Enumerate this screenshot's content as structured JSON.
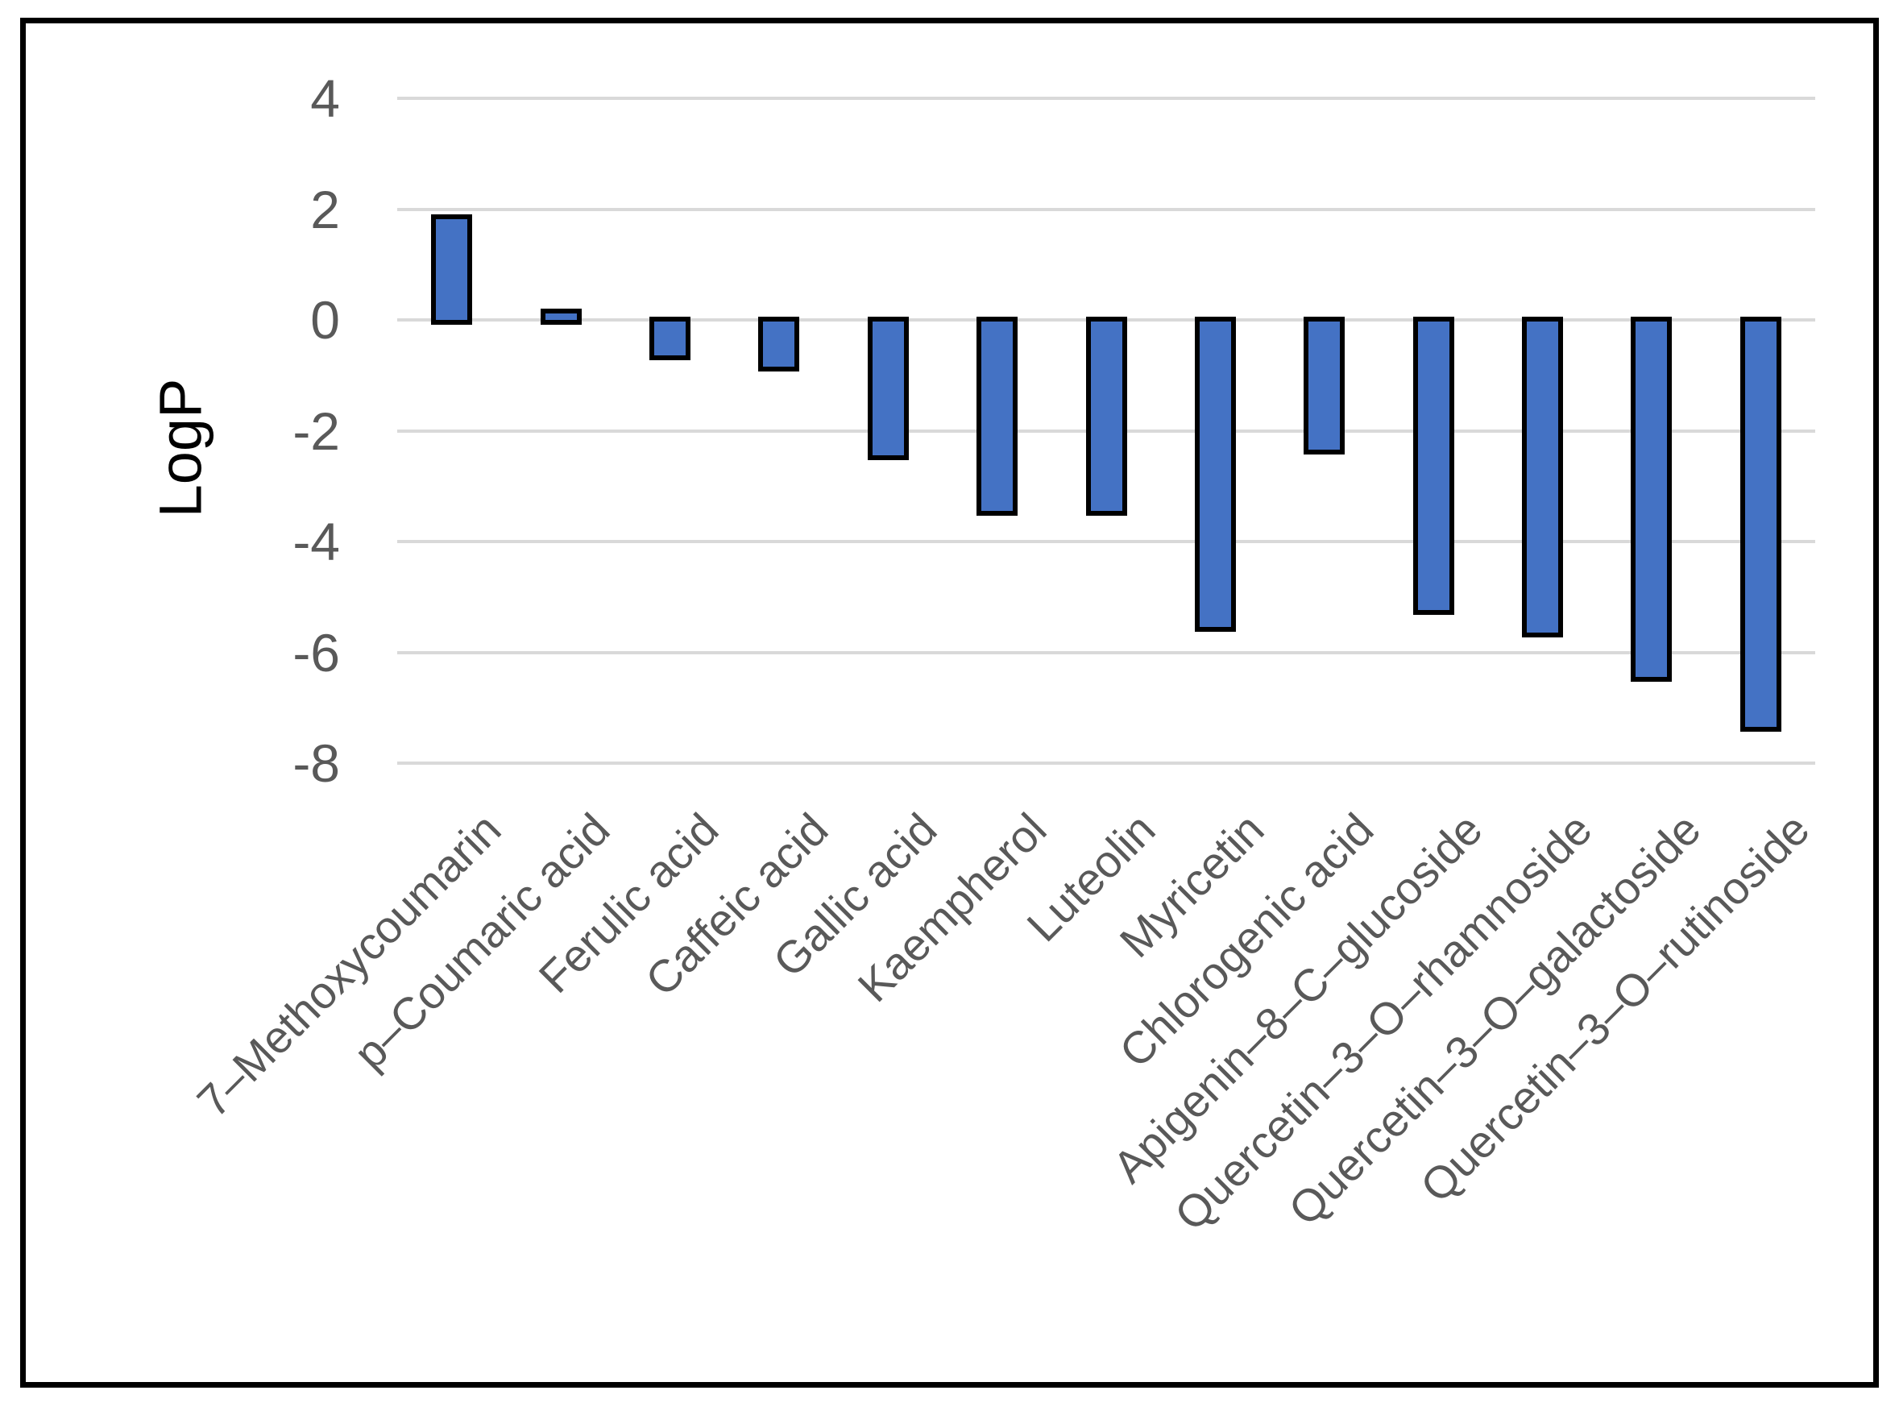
{
  "chart_data": {
    "type": "bar",
    "title": "",
    "xlabel": "",
    "ylabel": "LogP",
    "categories": [
      "7–Methoxycoumarin",
      "p–Coumaric acid",
      "Ferulic acid",
      "Caffeic acid",
      "Gallic acid",
      "Kaempherol",
      "Luteolin",
      "Myricetin",
      "Chlorogenic acid",
      "Apigenin–8–C–glucoside",
      "Quercetin–3–O–rhamnoside",
      "Quercetin–3–O–galactoside",
      "Quercetin–3–O–rutinoside"
    ],
    "values": [
      1.9,
      0.2,
      -0.7,
      -0.9,
      -2.5,
      -3.5,
      -3.5,
      -5.6,
      -2.4,
      -5.3,
      -5.7,
      -6.5,
      -7.4
    ],
    "ylim": [
      -8,
      4
    ],
    "yticks": [
      4,
      2,
      0,
      -2,
      -4,
      -6,
      -8
    ],
    "grid": true,
    "legend_position": "none",
    "x_label_rotation_deg": 45,
    "colors": {
      "bar_fill": "#4472C4",
      "bar_outline": "#000000",
      "gridline": "#D9D9D9",
      "axis_text": "#595959",
      "frame_border": "#000000",
      "background": "#FFFFFF"
    }
  }
}
